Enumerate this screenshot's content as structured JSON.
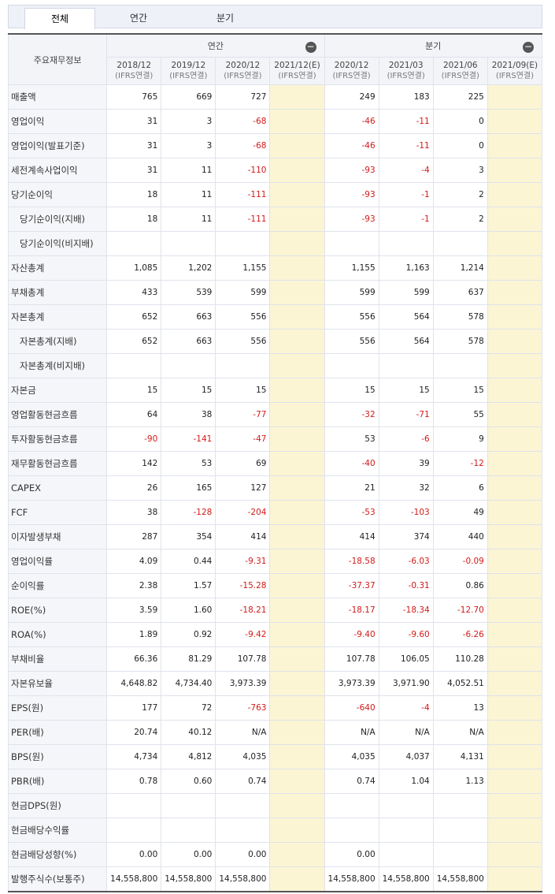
{
  "tabs": [
    "전체",
    "연간",
    "분기"
  ],
  "active_tab": 0,
  "header": {
    "row_header": "주요재무정보",
    "group_annual": "연간",
    "group_quarter": "분기",
    "collapse_glyph": "−",
    "columns": [
      {
        "date": "2018/12",
        "basis": "(IFRS연결)",
        "estimate": false
      },
      {
        "date": "2019/12",
        "basis": "(IFRS연결)",
        "estimate": false
      },
      {
        "date": "2020/12",
        "basis": "(IFRS연결)",
        "estimate": false
      },
      {
        "date": "2021/12(E)",
        "basis": "(IFRS연결)",
        "estimate": true
      },
      {
        "date": "2020/12",
        "basis": "(IFRS연결)",
        "estimate": false
      },
      {
        "date": "2021/03",
        "basis": "(IFRS연결)",
        "estimate": false
      },
      {
        "date": "2021/06",
        "basis": "(IFRS연결)",
        "estimate": false
      },
      {
        "date": "2021/09(E)",
        "basis": "(IFRS연결)",
        "estimate": true
      }
    ]
  },
  "colors": {
    "negative": "#d21a1a",
    "estimate_bg": "#fbf5d3",
    "label_bg": "#f5f6f9"
  },
  "rows": [
    {
      "label": "매출액",
      "indent": false,
      "values": [
        "765",
        "669",
        "727",
        "",
        "249",
        "183",
        "225",
        ""
      ]
    },
    {
      "label": "영업이익",
      "indent": false,
      "values": [
        "31",
        "3",
        "-68",
        "",
        "-46",
        "-11",
        "0",
        ""
      ]
    },
    {
      "label": "영업이익(발표기준)",
      "indent": false,
      "values": [
        "31",
        "3",
        "-68",
        "",
        "-46",
        "-11",
        "0",
        ""
      ]
    },
    {
      "label": "세전계속사업이익",
      "indent": false,
      "values": [
        "31",
        "11",
        "-110",
        "",
        "-93",
        "-4",
        "3",
        ""
      ]
    },
    {
      "label": "당기순이익",
      "indent": false,
      "values": [
        "18",
        "11",
        "-111",
        "",
        "-93",
        "-1",
        "2",
        ""
      ]
    },
    {
      "label": "당기순이익(지배)",
      "indent": true,
      "values": [
        "18",
        "11",
        "-111",
        "",
        "-93",
        "-1",
        "2",
        ""
      ]
    },
    {
      "label": "당기순이익(비지배)",
      "indent": true,
      "values": [
        "",
        "",
        "",
        "",
        "",
        "",
        "",
        ""
      ]
    },
    {
      "label": "자산총계",
      "indent": false,
      "values": [
        "1,085",
        "1,202",
        "1,155",
        "",
        "1,155",
        "1,163",
        "1,214",
        ""
      ]
    },
    {
      "label": "부채총계",
      "indent": false,
      "values": [
        "433",
        "539",
        "599",
        "",
        "599",
        "599",
        "637",
        ""
      ]
    },
    {
      "label": "자본총계",
      "indent": false,
      "values": [
        "652",
        "663",
        "556",
        "",
        "556",
        "564",
        "578",
        ""
      ]
    },
    {
      "label": "자본총계(지배)",
      "indent": true,
      "values": [
        "652",
        "663",
        "556",
        "",
        "556",
        "564",
        "578",
        ""
      ]
    },
    {
      "label": "자본총계(비지배)",
      "indent": true,
      "values": [
        "",
        "",
        "",
        "",
        "",
        "",
        "",
        ""
      ]
    },
    {
      "label": "자본금",
      "indent": false,
      "values": [
        "15",
        "15",
        "15",
        "",
        "15",
        "15",
        "15",
        ""
      ]
    },
    {
      "label": "영업활동현금흐름",
      "indent": false,
      "values": [
        "64",
        "38",
        "-77",
        "",
        "-32",
        "-71",
        "55",
        ""
      ]
    },
    {
      "label": "투자활동현금흐름",
      "indent": false,
      "values": [
        "-90",
        "-141",
        "-47",
        "",
        "53",
        "-6",
        "9",
        ""
      ]
    },
    {
      "label": "재무활동현금흐름",
      "indent": false,
      "values": [
        "142",
        "53",
        "69",
        "",
        "-40",
        "39",
        "-12",
        ""
      ]
    },
    {
      "label": "CAPEX",
      "indent": false,
      "values": [
        "26",
        "165",
        "127",
        "",
        "21",
        "32",
        "6",
        ""
      ]
    },
    {
      "label": "FCF",
      "indent": false,
      "values": [
        "38",
        "-128",
        "-204",
        "",
        "-53",
        "-103",
        "49",
        ""
      ]
    },
    {
      "label": "이자발생부채",
      "indent": false,
      "values": [
        "287",
        "354",
        "414",
        "",
        "414",
        "374",
        "440",
        ""
      ]
    },
    {
      "label": "영업이익률",
      "indent": false,
      "values": [
        "4.09",
        "0.44",
        "-9.31",
        "",
        "-18.58",
        "-6.03",
        "-0.09",
        ""
      ]
    },
    {
      "label": "순이익률",
      "indent": false,
      "values": [
        "2.38",
        "1.57",
        "-15.28",
        "",
        "-37.37",
        "-0.31",
        "0.86",
        ""
      ]
    },
    {
      "label": "ROE(%)",
      "indent": false,
      "values": [
        "3.59",
        "1.60",
        "-18.21",
        "",
        "-18.17",
        "-18.34",
        "-12.70",
        ""
      ]
    },
    {
      "label": "ROA(%)",
      "indent": false,
      "values": [
        "1.89",
        "0.92",
        "-9.42",
        "",
        "-9.40",
        "-9.60",
        "-6.26",
        ""
      ]
    },
    {
      "label": "부채비율",
      "indent": false,
      "values": [
        "66.36",
        "81.29",
        "107.78",
        "",
        "107.78",
        "106.05",
        "110.28",
        ""
      ]
    },
    {
      "label": "자본유보율",
      "indent": false,
      "values": [
        "4,648.82",
        "4,734.40",
        "3,973.39",
        "",
        "3,973.39",
        "3,971.90",
        "4,052.51",
        ""
      ]
    },
    {
      "label": "EPS(원)",
      "indent": false,
      "values": [
        "177",
        "72",
        "-763",
        "",
        "-640",
        "-4",
        "13",
        ""
      ]
    },
    {
      "label": "PER(배)",
      "indent": false,
      "values": [
        "20.74",
        "40.12",
        "N/A",
        "",
        "N/A",
        "N/A",
        "N/A",
        ""
      ]
    },
    {
      "label": "BPS(원)",
      "indent": false,
      "values": [
        "4,734",
        "4,812",
        "4,035",
        "",
        "4,035",
        "4,037",
        "4,131",
        ""
      ]
    },
    {
      "label": "PBR(배)",
      "indent": false,
      "values": [
        "0.78",
        "0.60",
        "0.74",
        "",
        "0.74",
        "1.04",
        "1.13",
        ""
      ]
    },
    {
      "label": "현금DPS(원)",
      "indent": false,
      "values": [
        "",
        "",
        "",
        "",
        "",
        "",
        "",
        ""
      ]
    },
    {
      "label": "현금배당수익률",
      "indent": false,
      "values": [
        "",
        "",
        "",
        "",
        "",
        "",
        "",
        ""
      ]
    },
    {
      "label": "현금배당성향(%)",
      "indent": false,
      "values": [
        "0.00",
        "0.00",
        "0.00",
        "",
        "0.00",
        "",
        "",
        ""
      ]
    },
    {
      "label": "발행주식수(보통주)",
      "indent": false,
      "values": [
        "14,558,800",
        "14,558,800",
        "14,558,800",
        "",
        "14,558,800",
        "14,558,800",
        "14,558,800",
        ""
      ]
    }
  ]
}
